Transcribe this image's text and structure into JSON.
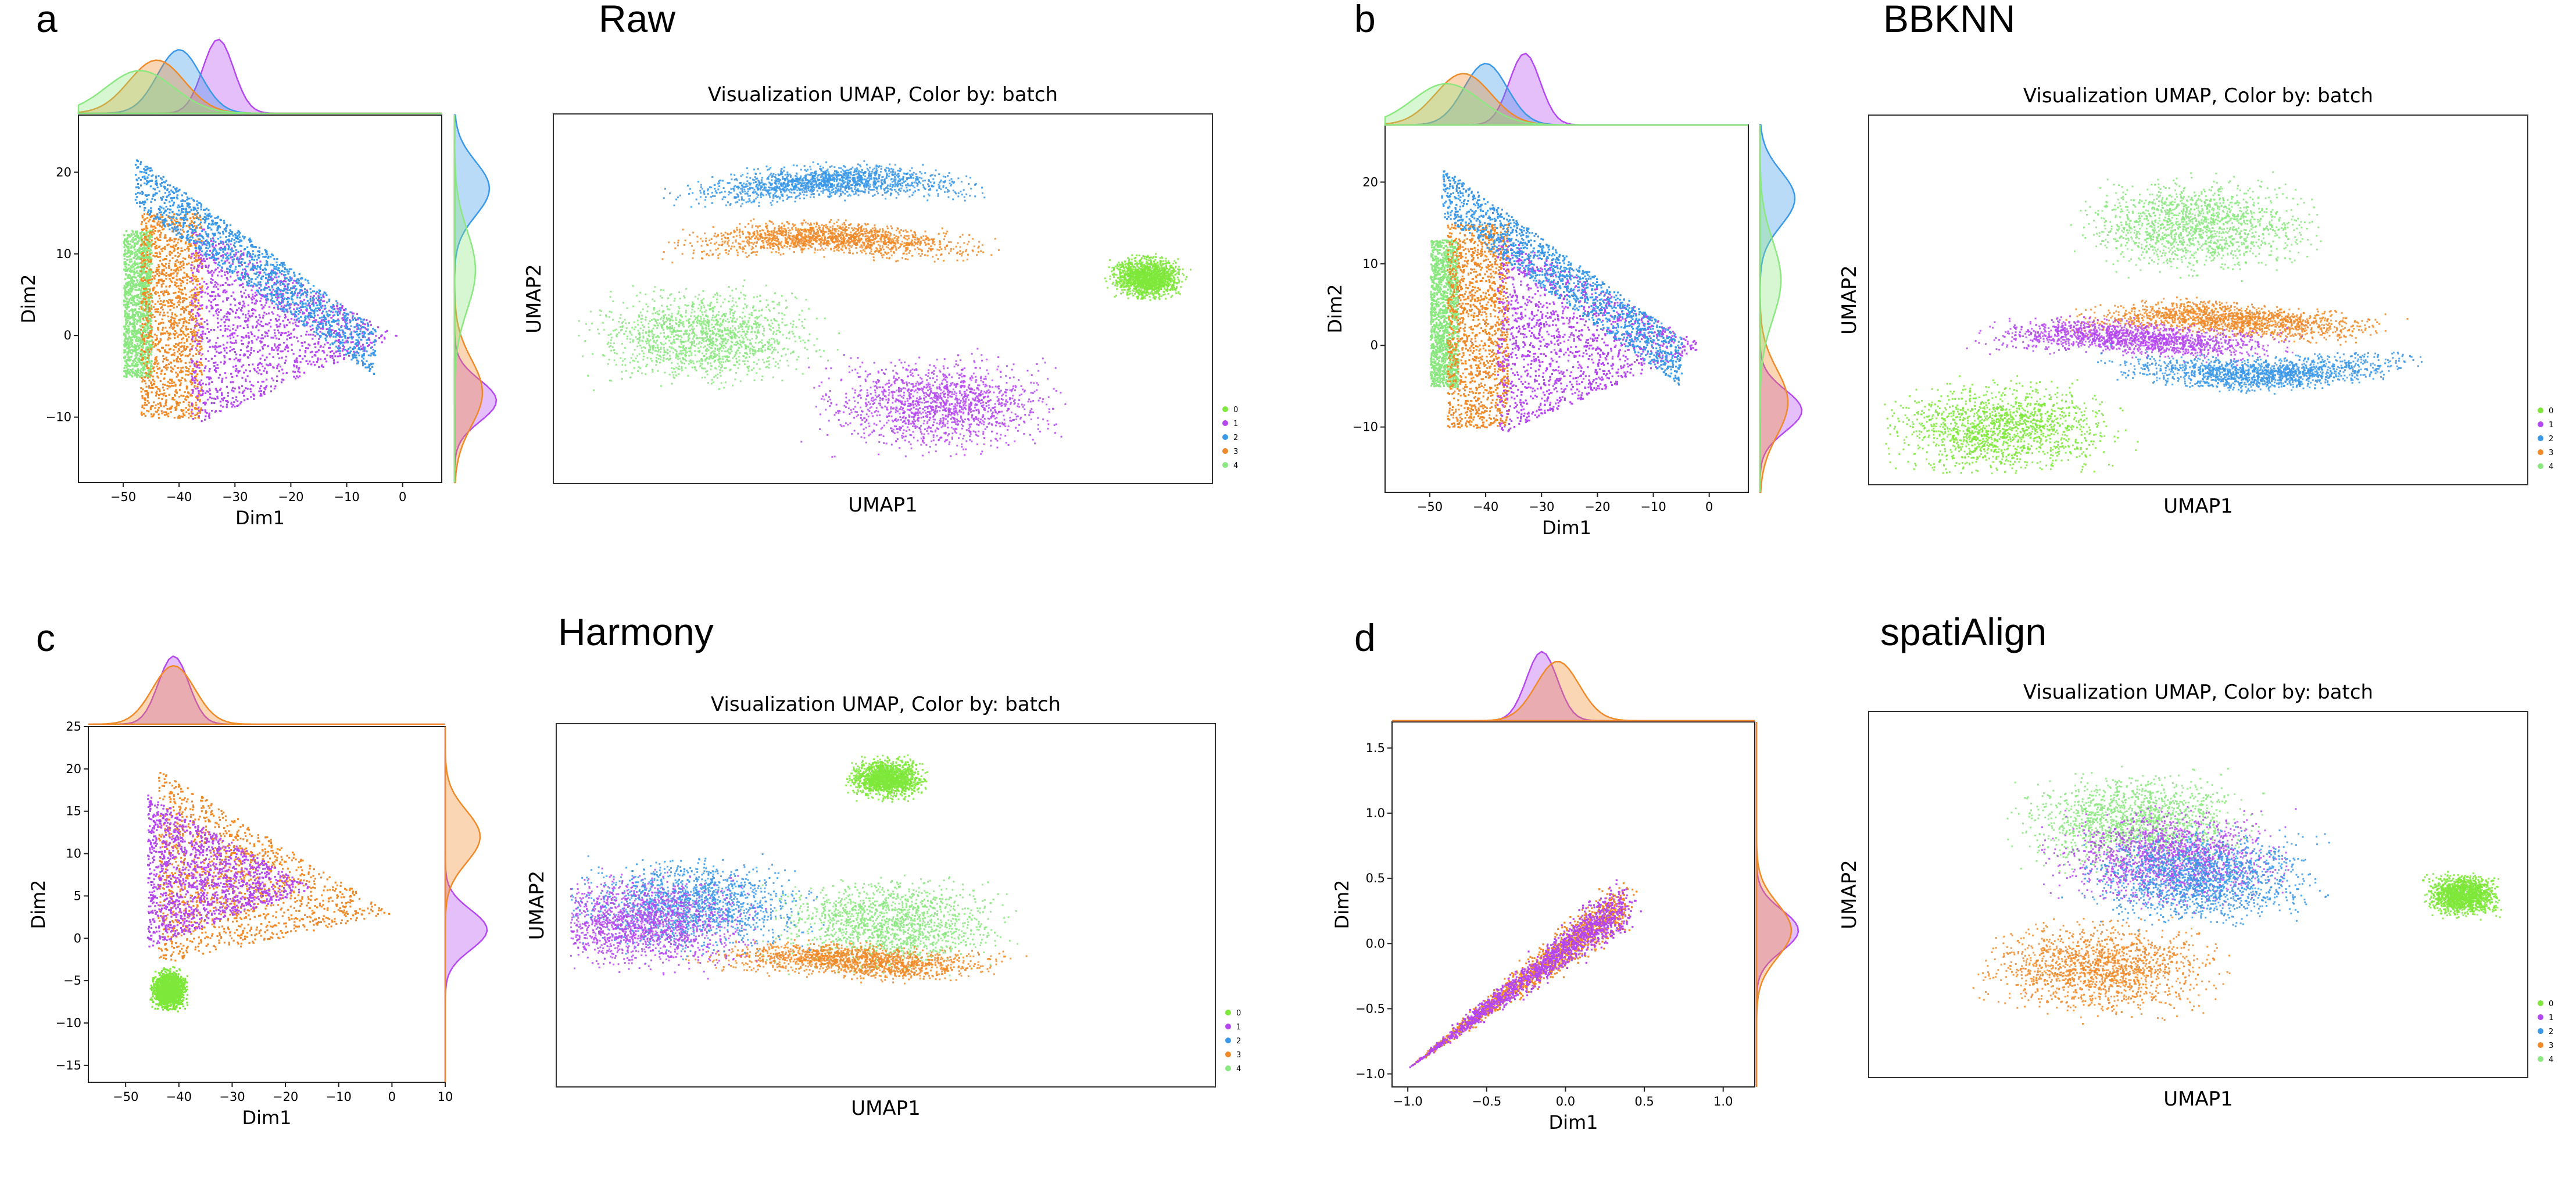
{
  "figure": {
    "layout": "2x2 panels: scatter with marginal densities (left) and UMAP colored by batch (right)"
  },
  "batch_colors": {
    "0": "#7ee83a",
    "1": "#b547f0",
    "2": "#3a98e8",
    "3": "#f08a28",
    "4": "#8be880"
  },
  "chart_data": [
    {
      "panel": "a",
      "title": "Raw",
      "scatter": {
        "type": "scatter",
        "xlabel": "Dim1",
        "ylabel": "Dim2",
        "xlim": [
          -58,
          7
        ],
        "ylim": [
          -18,
          27
        ],
        "xticks": [
          -50,
          -40,
          -30,
          -20,
          -10,
          0
        ],
        "yticks": [
          -10,
          0,
          10,
          20
        ],
        "xtick_labels": [
          "−50",
          "−40",
          "−30",
          "−20",
          "−10",
          "0"
        ],
        "ytick_labels": [
          "−10",
          "0",
          "10",
          "20"
        ],
        "series": [
          {
            "name": "4",
            "blob": "wedge",
            "xr": [
              -50,
              -45
            ],
            "yr": [
              -5,
              13
            ]
          },
          {
            "name": "3",
            "blob": "wedge",
            "xr": [
              -47,
              -36
            ],
            "yr": [
              -10,
              15
            ]
          },
          {
            "name": "1",
            "blob": "tri",
            "apex": [
              -1,
              0
            ],
            "base_x": -38,
            "yr": [
              -11,
              14
            ]
          },
          {
            "name": "2",
            "blob": "band",
            "xr": [
              -48,
              -5
            ],
            "top": 22
          }
        ],
        "top_density_peaks": {
          "4": -47,
          "3": -44,
          "2": -40,
          "1": -33
        },
        "right_density_peaks": {
          "1": -8,
          "3": -7,
          "2": 18,
          "4": 8
        }
      },
      "umap": {
        "type": "scatter",
        "title": "Visualization UMAP, Color by: batch",
        "xlabel": "UMAP1",
        "ylabel": "UMAP2",
        "legend": [
          "0",
          "1",
          "2",
          "3",
          "4"
        ],
        "clusters": [
          {
            "name": "2",
            "shape": "upper band",
            "cx": 0.42,
            "cy": 0.82
          },
          {
            "name": "3",
            "shape": "middle band",
            "cx": 0.42,
            "cy": 0.67
          },
          {
            "name": "4",
            "shape": "lower-left mass",
            "cx": 0.23,
            "cy": 0.4
          },
          {
            "name": "0",
            "shape": "right island",
            "cx": 0.9,
            "cy": 0.56
          },
          {
            "name": "1",
            "shape": "bottom mass",
            "cx": 0.58,
            "cy": 0.22
          }
        ]
      }
    },
    {
      "panel": "b",
      "title": "BBKNN",
      "scatter": {
        "type": "scatter",
        "xlabel": "Dim1",
        "ylabel": "Dim2",
        "xlim": [
          -58,
          7
        ],
        "ylim": [
          -18,
          27
        ],
        "xticks": [
          -50,
          -40,
          -30,
          -20,
          -10,
          0
        ],
        "yticks": [
          -10,
          0,
          10,
          20
        ],
        "xtick_labels": [
          "−50",
          "−40",
          "−30",
          "−20",
          "−10",
          "0"
        ],
        "ytick_labels": [
          "−10",
          "0",
          "10",
          "20"
        ],
        "series": [
          {
            "name": "4",
            "blob": "wedge",
            "xr": [
              -50,
              -45
            ],
            "yr": [
              -5,
              13
            ]
          },
          {
            "name": "3",
            "blob": "wedge",
            "xr": [
              -47,
              -36
            ],
            "yr": [
              -10,
              15
            ]
          },
          {
            "name": "1",
            "blob": "tri",
            "apex": [
              -1,
              0
            ],
            "base_x": -38,
            "yr": [
              -11,
              14
            ]
          },
          {
            "name": "2",
            "blob": "band",
            "xr": [
              -48,
              -5
            ],
            "top": 22
          }
        ],
        "top_density_peaks": {
          "4": -47,
          "3": -44,
          "2": -40,
          "1": -33
        },
        "right_density_peaks": {
          "1": -8,
          "3": -7,
          "2": 18,
          "4": 8
        }
      },
      "umap": {
        "type": "scatter",
        "title": "Visualization UMAP, Color by: batch",
        "xlabel": "UMAP1",
        "ylabel": "UMAP2",
        "legend": [
          "0",
          "1",
          "2",
          "3",
          "4"
        ],
        "clusters": [
          {
            "name": "4",
            "shape": "upper mixed mass",
            "cx": 0.5,
            "cy": 0.7
          },
          {
            "name": "3",
            "shape": "central band",
            "cx": 0.55,
            "cy": 0.45
          },
          {
            "name": "1",
            "shape": "central band",
            "cx": 0.4,
            "cy": 0.4
          },
          {
            "name": "2",
            "shape": "lower band",
            "cx": 0.6,
            "cy": 0.3
          },
          {
            "name": "0",
            "shape": "lower-left patch",
            "cx": 0.2,
            "cy": 0.15
          }
        ]
      }
    },
    {
      "panel": "c",
      "title": "Harmony",
      "scatter": {
        "type": "scatter",
        "xlabel": "Dim1",
        "ylabel": "Dim2",
        "xlim": [
          -57,
          10
        ],
        "ylim": [
          -17,
          25
        ],
        "xticks": [
          -50,
          -40,
          -30,
          -20,
          -10,
          0,
          10
        ],
        "yticks": [
          -15,
          -10,
          -5,
          0,
          5,
          10,
          15,
          20,
          25
        ],
        "xtick_labels": [
          "−50",
          "−40",
          "−30",
          "−20",
          "−10",
          "0",
          "10"
        ],
        "ytick_labels": [
          "−15",
          "−10",
          "−5",
          "0",
          "5",
          "10",
          "15",
          "20",
          "25"
        ],
        "series": [
          {
            "name": "3",
            "blob": "tri",
            "apex": [
              0,
              3
            ],
            "base_x": -44,
            "yr": [
              -3,
              20
            ]
          },
          {
            "name": "1",
            "blob": "tri",
            "apex": [
              -15,
              6
            ],
            "base_x": -46,
            "yr": [
              -1,
              17
            ]
          },
          {
            "name": "0",
            "blob": "cluster",
            "cx": -42,
            "cy": -6
          }
        ],
        "top_density_peaks": {
          "3": -41,
          "1": -41
        },
        "right_density_peaks": {
          "3": 12,
          "1": 1
        }
      },
      "umap": {
        "type": "scatter",
        "title": "Visualization UMAP, Color by: batch",
        "xlabel": "UMAP1",
        "ylabel": "UMAP2",
        "legend": [
          "0",
          "1",
          "2",
          "3",
          "4"
        ],
        "clusters": [
          {
            "name": "0",
            "shape": "top island",
            "cx": 0.5,
            "cy": 0.85
          },
          {
            "name": "4",
            "shape": "large central mass",
            "cx": 0.5,
            "cy": 0.45
          },
          {
            "name": "3",
            "shape": "swirling bands",
            "cx": 0.45,
            "cy": 0.35
          },
          {
            "name": "2",
            "shape": "left patches",
            "cx": 0.2,
            "cy": 0.5
          },
          {
            "name": "1",
            "shape": "left edge",
            "cx": 0.12,
            "cy": 0.45
          }
        ]
      }
    },
    {
      "panel": "d",
      "title": "spatiAlign",
      "scatter": {
        "type": "scatter",
        "xlabel": "Dim1",
        "ylabel": "Dim2",
        "xlim": [
          -1.1,
          1.2
        ],
        "ylim": [
          -1.1,
          1.7
        ],
        "xticks": [
          -1.0,
          -0.5,
          0.0,
          0.5,
          1.0
        ],
        "yticks": [
          -1.0,
          -0.5,
          0.0,
          0.5,
          1.0,
          1.5
        ],
        "xtick_labels": [
          "−1.0",
          "−0.5",
          "0.0",
          "0.5",
          "1.0"
        ],
        "ytick_labels": [
          "−1.0",
          "−0.5",
          "0.0",
          "0.5",
          "1.0",
          "1.5"
        ],
        "series": [
          {
            "name": "3",
            "blob": "leaf",
            "tail": [
              -1.0,
              -0.95
            ],
            "cx": 0.1,
            "cy": 0.1
          },
          {
            "name": "1",
            "blob": "leaf",
            "tail": [
              -1.0,
              -0.95
            ],
            "cx": 0.1,
            "cy": 0.1
          }
        ],
        "top_density_peaks": {
          "1": -0.15,
          "3": -0.05
        },
        "right_density_peaks": {
          "1": 0.1,
          "3": 0.1
        }
      },
      "umap": {
        "type": "scatter",
        "title": "Visualization UMAP, Color by: batch",
        "xlabel": "UMAP1",
        "ylabel": "UMAP2",
        "legend": [
          "0",
          "1",
          "2",
          "3",
          "4"
        ],
        "clusters": [
          {
            "name": "4",
            "shape": "upper lobe",
            "cx": 0.4,
            "cy": 0.7
          },
          {
            "name": "3",
            "shape": "lower lobe",
            "cx": 0.35,
            "cy": 0.3
          },
          {
            "name": "1",
            "shape": "mixed",
            "cx": 0.45,
            "cy": 0.6
          },
          {
            "name": "2",
            "shape": "mixed",
            "cx": 0.5,
            "cy": 0.55
          },
          {
            "name": "0",
            "shape": "right tail",
            "cx": 0.9,
            "cy": 0.5
          }
        ]
      }
    }
  ]
}
